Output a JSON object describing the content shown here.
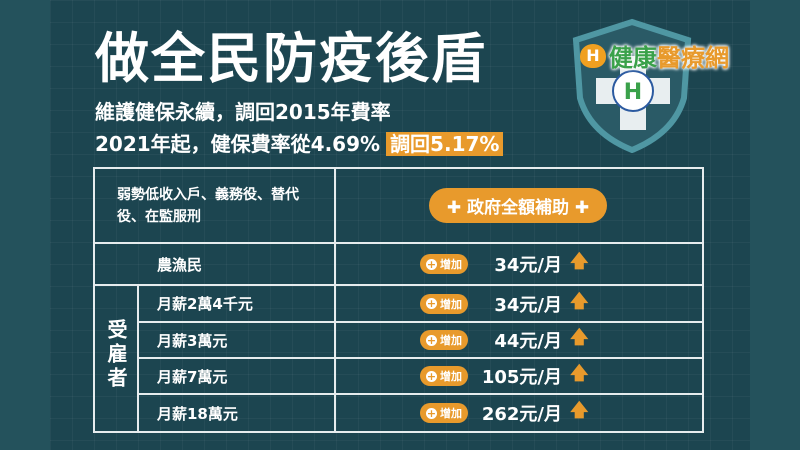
{
  "title": "做全民防疫後盾",
  "subtitle_line1": "維護健保永續，調回2015年費率",
  "subtitle_line2": "2021年起，健保費率從4.69%",
  "subtitle_highlight": "調回5.17%",
  "logo": {
    "mark": "H",
    "text_part1": "健康",
    "text_part2": "醫療網"
  },
  "colors": {
    "accent": "#e89a2c",
    "background": "#1c4550",
    "logo_green": "#3aa14a"
  },
  "table": {
    "exempt_group": "弱勢低收入戶、義務役、替代役、在監服刑",
    "exempt_value": "政府全額補助",
    "increase_label": "增加",
    "farmer": {
      "label": "農漁民",
      "amount": "34元/月"
    },
    "employee_group": "受雇者",
    "employees": [
      {
        "label": "月薪2萬4千元",
        "amount": "34元/月"
      },
      {
        "label": "月薪3萬元",
        "amount": "44元/月"
      },
      {
        "label": "月薪7萬元",
        "amount": "105元/月"
      },
      {
        "label": "月薪18萬元",
        "amount": "262元/月"
      }
    ]
  }
}
